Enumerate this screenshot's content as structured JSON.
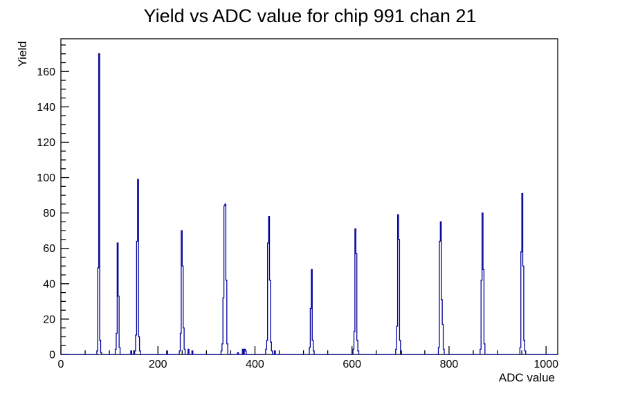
{
  "chart_data": {
    "type": "bar",
    "subtype": "root-histogram-step-line",
    "title": "Yield vs ADC value for chip 991 chan 21",
    "xlabel": "ADC value",
    "ylabel": "Yield",
    "xlim": [
      0,
      1024
    ],
    "ylim": [
      0,
      178.5
    ],
    "x_major_tick_step": 200,
    "x_major_tick_labels": [
      "0",
      "200",
      "400",
      "600",
      "800",
      "1000"
    ],
    "x_minor_tick_step": 50,
    "y_major_tick_step": 20,
    "y_major_tick_labels": [
      "0",
      "20",
      "40",
      "60",
      "80",
      "100",
      "120",
      "140",
      "160"
    ],
    "y_minor_tick_step": 5,
    "grid": false,
    "legend": false,
    "background_color": "#ffffff",
    "line_color": "#000099",
    "axis_color": "#000000",
    "bin_width": 2,
    "peaks_summary": [
      {
        "adc": 78,
        "yield": 170
      },
      {
        "adc": 116,
        "yield": 63
      },
      {
        "adc": 158,
        "yield": 99
      },
      {
        "adc": 248,
        "yield": 70
      },
      {
        "adc": 338,
        "yield": 85
      },
      {
        "adc": 428,
        "yield": 78
      },
      {
        "adc": 516,
        "yield": 48
      },
      {
        "adc": 606,
        "yield": 71
      },
      {
        "adc": 694,
        "yield": 79
      },
      {
        "adc": 782,
        "yield": 75
      },
      {
        "adc": 868,
        "yield": 80
      },
      {
        "adc": 950,
        "yield": 91
      }
    ],
    "bins": [
      [
        74,
        2
      ],
      [
        76,
        49
      ],
      [
        78,
        170
      ],
      [
        80,
        8
      ],
      [
        82,
        1
      ],
      [
        112,
        3
      ],
      [
        114,
        12
      ],
      [
        116,
        63
      ],
      [
        118,
        33
      ],
      [
        120,
        4
      ],
      [
        144,
        2
      ],
      [
        152,
        2
      ],
      [
        154,
        11
      ],
      [
        156,
        64
      ],
      [
        158,
        99
      ],
      [
        160,
        10
      ],
      [
        162,
        2
      ],
      [
        218,
        2
      ],
      [
        244,
        2
      ],
      [
        246,
        12
      ],
      [
        248,
        70
      ],
      [
        250,
        50
      ],
      [
        252,
        15
      ],
      [
        254,
        3
      ],
      [
        262,
        3
      ],
      [
        270,
        2
      ],
      [
        330,
        2
      ],
      [
        332,
        6
      ],
      [
        334,
        32
      ],
      [
        336,
        84
      ],
      [
        338,
        85
      ],
      [
        340,
        42
      ],
      [
        342,
        6
      ],
      [
        364,
        1
      ],
      [
        374,
        3
      ],
      [
        378,
        3
      ],
      [
        380,
        2
      ],
      [
        422,
        3
      ],
      [
        424,
        8
      ],
      [
        426,
        63
      ],
      [
        428,
        78
      ],
      [
        430,
        42
      ],
      [
        432,
        7
      ],
      [
        434,
        2
      ],
      [
        440,
        2
      ],
      [
        512,
        4
      ],
      [
        514,
        26
      ],
      [
        516,
        48
      ],
      [
        518,
        8
      ],
      [
        520,
        2
      ],
      [
        602,
        3
      ],
      [
        604,
        13
      ],
      [
        606,
        71
      ],
      [
        608,
        57
      ],
      [
        610,
        8
      ],
      [
        612,
        2
      ],
      [
        690,
        3
      ],
      [
        692,
        16
      ],
      [
        694,
        79
      ],
      [
        696,
        65
      ],
      [
        698,
        8
      ],
      [
        700,
        2
      ],
      [
        778,
        4
      ],
      [
        780,
        64
      ],
      [
        782,
        75
      ],
      [
        784,
        31
      ],
      [
        786,
        17
      ],
      [
        788,
        3
      ],
      [
        864,
        3
      ],
      [
        866,
        42
      ],
      [
        868,
        80
      ],
      [
        870,
        48
      ],
      [
        872,
        6
      ],
      [
        946,
        4
      ],
      [
        948,
        58
      ],
      [
        950,
        91
      ],
      [
        952,
        50
      ],
      [
        954,
        8
      ],
      [
        956,
        2
      ]
    ]
  }
}
